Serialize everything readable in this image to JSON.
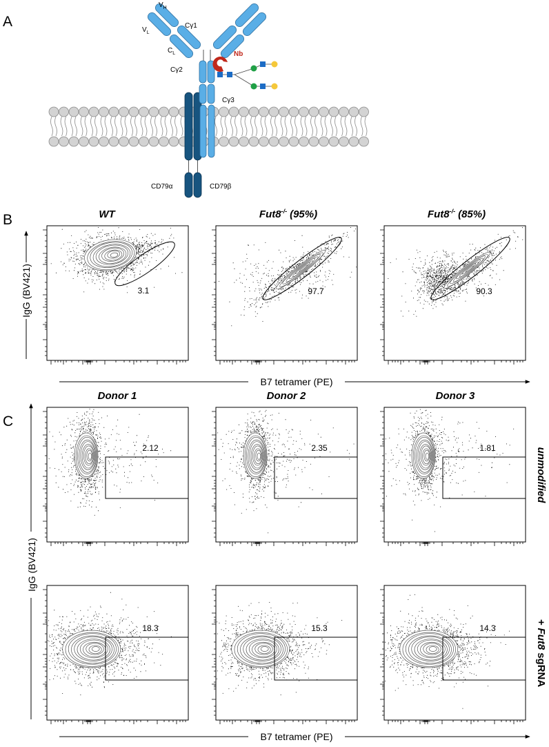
{
  "panel_a": {
    "label": "A",
    "vh": "V",
    "vh_sub": "H",
    "vl": "V",
    "vl_sub": "L",
    "cl": "C",
    "cl_sub": "L",
    "cg1": "Cγ1",
    "cg2": "Cγ2",
    "cg3": "Cγ3",
    "nb": "Nb",
    "cd79a": "CD79α",
    "cd79b": "CD79β"
  },
  "panel_b": {
    "label": "B",
    "y_axis": "IgG (BV421)",
    "x_axis": "B7 tetramer (PE)",
    "plots": [
      {
        "title": "WT",
        "gate_value": 3.1
      },
      {
        "title": "Fut8",
        "title_sup": "-/-",
        "title_suffix": "(95%)",
        "gate_value": 97.7
      },
      {
        "title": "Fut8",
        "title_sup": "-/-",
        "title_suffix": "(85%)",
        "gate_value": 90.3
      }
    ]
  },
  "panel_c": {
    "label": "C",
    "y_axis": "IgG (BV421)",
    "x_axis": "B7 tetramer (PE)",
    "columns": [
      "Donor 1",
      "Donor 2",
      "Donor 3"
    ],
    "rows": [
      {
        "label": "unmodified",
        "gates": [
          2.12,
          2.35,
          1.81
        ]
      },
      {
        "label_prefix": "+",
        "label_gene": "Fut8",
        "label_suffix": "sgRNA",
        "gates": [
          18.3,
          15.3,
          14.3
        ]
      }
    ]
  }
}
